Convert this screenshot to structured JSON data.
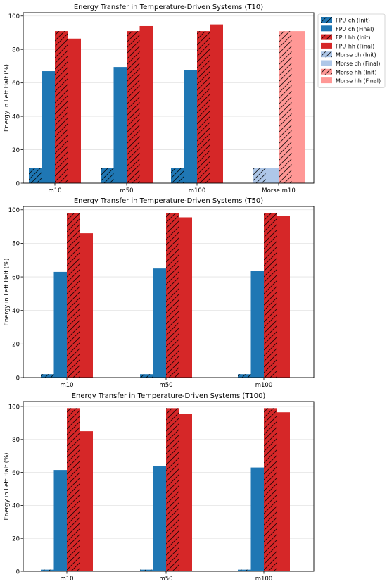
{
  "chart_data": [
    {
      "type": "bar",
      "title": "Energy Transfer in Temperature-Driven Systems (T10)",
      "xlabel": "",
      "ylabel": "Energy in Left Half (%)",
      "ylim": [
        0,
        102
      ],
      "yticks": [
        0,
        20,
        40,
        60,
        80,
        100
      ],
      "grid": "y",
      "legend": "top-right, outside",
      "categories": [
        "m10",
        "m50",
        "m100",
        "Morse m10"
      ],
      "series": [
        {
          "name": "FPU ch (Init)",
          "values": [
            9,
            9,
            9,
            null
          ],
          "color": "#1f77b4",
          "hatch": true
        },
        {
          "name": "FPU ch (Final)",
          "values": [
            67,
            69.5,
            67.5,
            null
          ],
          "color": "#1f77b4",
          "hatch": false
        },
        {
          "name": "FPU hh (Init)",
          "values": [
            91,
            91,
            91,
            null
          ],
          "color": "#d62728",
          "hatch": true
        },
        {
          "name": "FPU hh (Final)",
          "values": [
            86.5,
            94,
            95,
            null
          ],
          "color": "#d62728",
          "hatch": false
        },
        {
          "name": "Morse ch (Init)",
          "values": [
            null,
            null,
            null,
            9
          ],
          "color": "#aec7e8",
          "hatch": true
        },
        {
          "name": "Morse ch (Final)",
          "values": [
            null,
            null,
            null,
            9
          ],
          "color": "#aec7e8",
          "hatch": false
        },
        {
          "name": "Morse hh (Init)",
          "values": [
            null,
            null,
            null,
            91
          ],
          "color": "#ff9896",
          "hatch": true
        },
        {
          "name": "Morse hh (Final)",
          "values": [
            null,
            null,
            null,
            91
          ],
          "color": "#ff9896",
          "hatch": false
        }
      ]
    },
    {
      "type": "bar",
      "title": "Energy Transfer in Temperature-Driven Systems (T50)",
      "xlabel": "",
      "ylabel": "Energy in Left Half (%)",
      "ylim": [
        0,
        102
      ],
      "yticks": [
        0,
        20,
        40,
        60,
        80,
        100
      ],
      "grid": "y",
      "categories": [
        "m10",
        "m50",
        "m100"
      ],
      "series": [
        {
          "name": "FPU ch (Init)",
          "values": [
            2,
            2,
            2
          ],
          "color": "#1f77b4",
          "hatch": true
        },
        {
          "name": "FPU ch (Final)",
          "values": [
            63,
            65,
            63.5
          ],
          "color": "#1f77b4",
          "hatch": false
        },
        {
          "name": "FPU hh (Init)",
          "values": [
            98,
            98,
            98
          ],
          "color": "#d62728",
          "hatch": true
        },
        {
          "name": "FPU hh (Final)",
          "values": [
            86,
            95.5,
            96.5
          ],
          "color": "#d62728",
          "hatch": false
        }
      ]
    },
    {
      "type": "bar",
      "title": "Energy Transfer in Temperature-Driven Systems (T100)",
      "xlabel": "",
      "ylabel": "Energy in Left Half (%)",
      "ylim": [
        0,
        103
      ],
      "yticks": [
        0,
        20,
        40,
        60,
        80,
        100
      ],
      "grid": "y",
      "categories": [
        "m10",
        "m50",
        "m100"
      ],
      "series": [
        {
          "name": "FPU ch (Init)",
          "values": [
            1,
            1,
            1
          ],
          "color": "#1f77b4",
          "hatch": true
        },
        {
          "name": "FPU ch (Final)",
          "values": [
            61.5,
            64,
            63
          ],
          "color": "#1f77b4",
          "hatch": false
        },
        {
          "name": "FPU hh (Init)",
          "values": [
            99,
            99,
            99
          ],
          "color": "#d62728",
          "hatch": true
        },
        {
          "name": "FPU hh (Final)",
          "values": [
            85,
            95.5,
            96.5
          ],
          "color": "#d62728",
          "hatch": false
        }
      ]
    }
  ]
}
